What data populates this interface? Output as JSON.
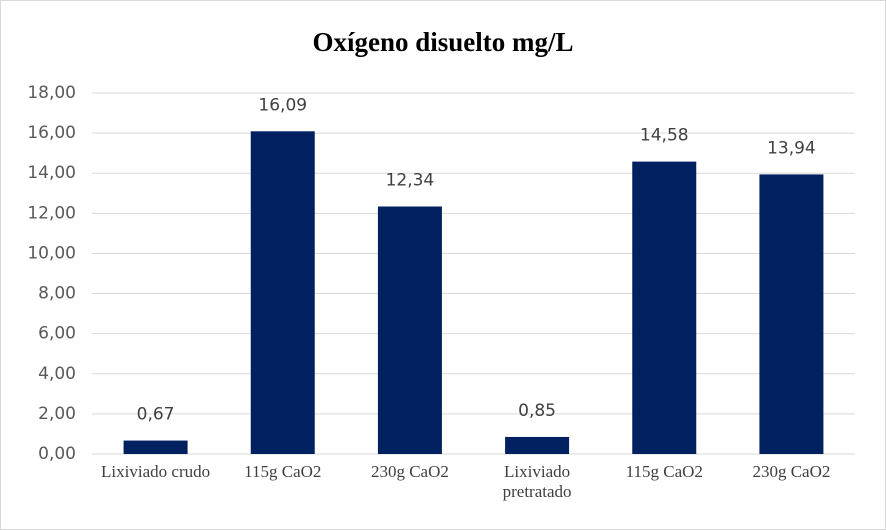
{
  "chart_data": {
    "type": "bar",
    "title": "Oxígeno disuelto mg/L",
    "categories": [
      "Lixiviado crudo",
      "115g CaO2",
      "230g CaO2",
      "Lixiviado pretratado",
      "115g CaO2",
      "230g CaO2"
    ],
    "values": [
      0.67,
      16.09,
      12.34,
      0.85,
      14.58,
      13.94
    ],
    "value_labels": [
      "0,67",
      "16,09",
      "12,34",
      "0,85",
      "14,58",
      "13,94"
    ],
    "color": "#002060",
    "ylim": [
      0,
      18
    ],
    "yticks": [
      {
        "value": 0,
        "label": "0,00"
      },
      {
        "value": 2,
        "label": "2,00"
      },
      {
        "value": 4,
        "label": "4,00"
      },
      {
        "value": 6,
        "label": "6,00"
      },
      {
        "value": 8,
        "label": "8,00"
      },
      {
        "value": 10,
        "label": "10,00"
      },
      {
        "value": 12,
        "label": "12,00"
      },
      {
        "value": 14,
        "label": "14,00"
      },
      {
        "value": 16,
        "label": "16,00"
      },
      {
        "value": 18,
        "label": "18,00"
      }
    ],
    "grid": true
  }
}
